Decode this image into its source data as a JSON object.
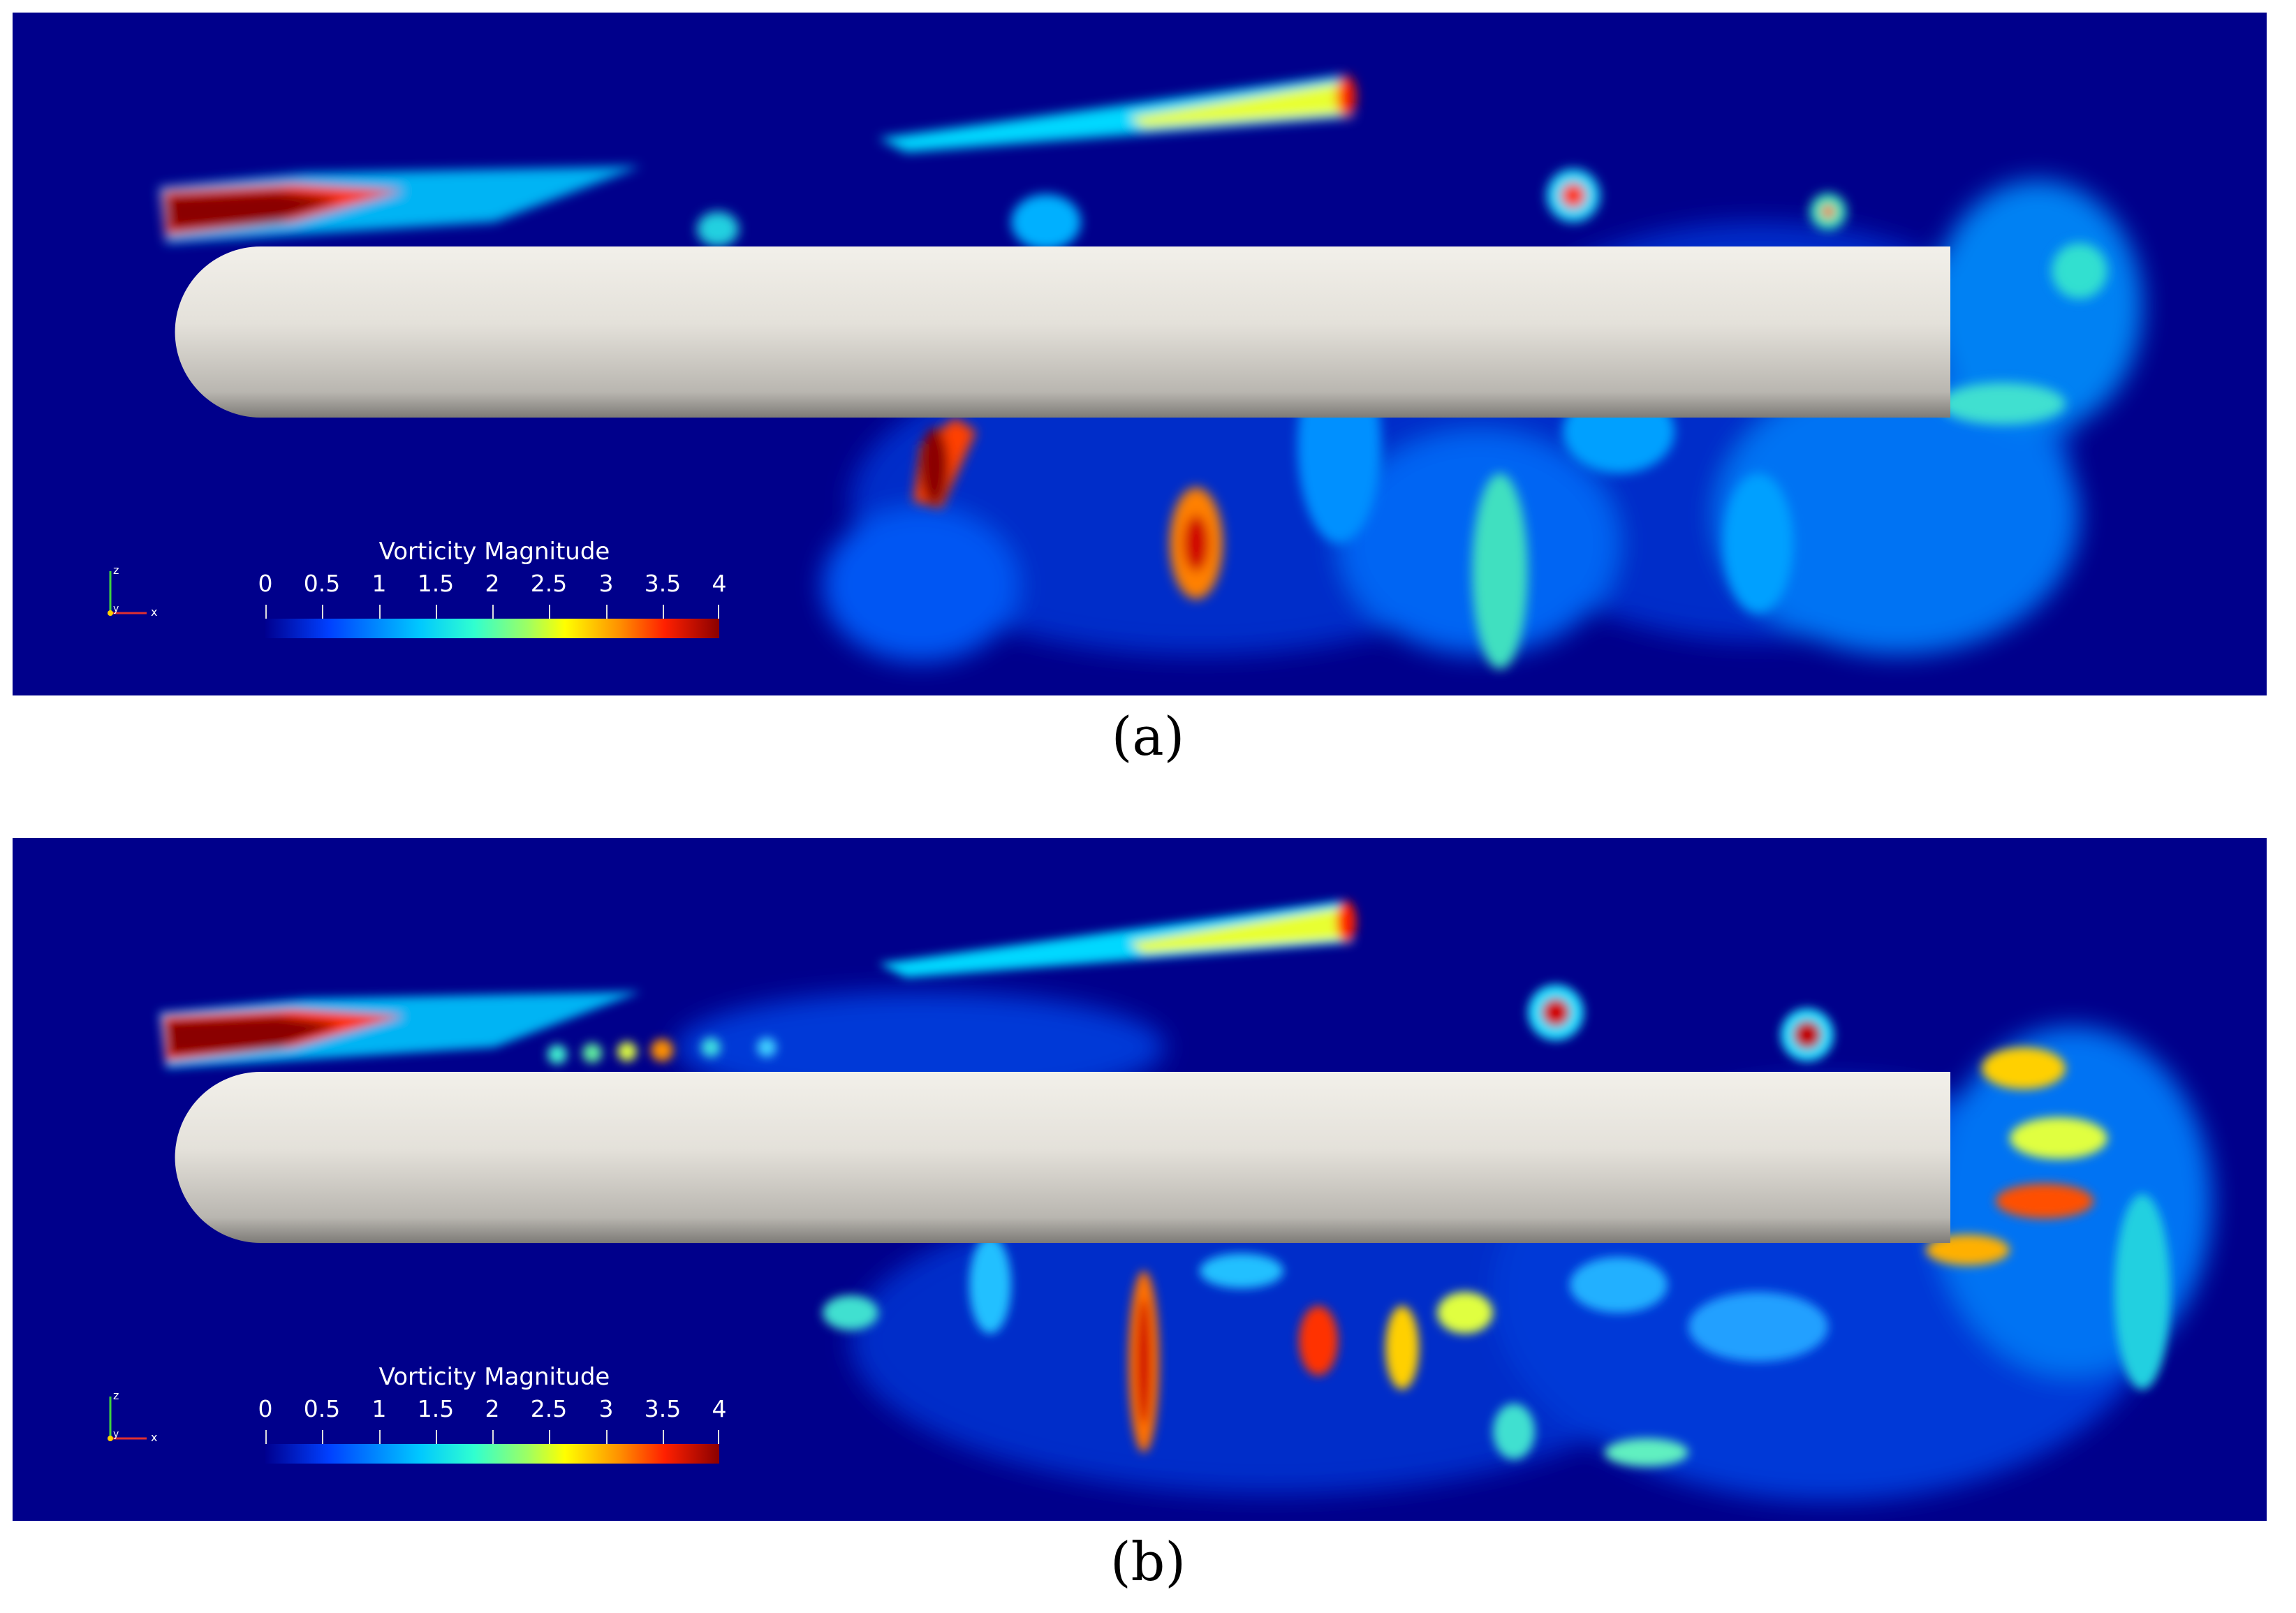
{
  "figure": {
    "panels": [
      {
        "id": "a",
        "caption": "(a)",
        "colorbar": {
          "title": "Vorticity Magnitude",
          "ticks": [
            "0",
            "0.5",
            "1",
            "1.5",
            "2",
            "2.5",
            "3",
            "3.5",
            "4"
          ]
        },
        "axes": {
          "z_label": "z",
          "y_label": "y",
          "x_label": "x"
        }
      },
      {
        "id": "b",
        "caption": "(b)",
        "colorbar": {
          "title": "Vorticity Magnitude",
          "ticks": [
            "0",
            "0.5",
            "1",
            "1.5",
            "2",
            "2.5",
            "3",
            "3.5",
            "4"
          ]
        },
        "axes": {
          "z_label": "z",
          "y_label": "y",
          "x_label": "x"
        }
      }
    ],
    "colors": {
      "background": "#00008b",
      "body": "#e6e4df",
      "low": "#0033ff",
      "mid": "#00e0ff",
      "high": "#ffff00",
      "max": "#8b0000"
    }
  }
}
